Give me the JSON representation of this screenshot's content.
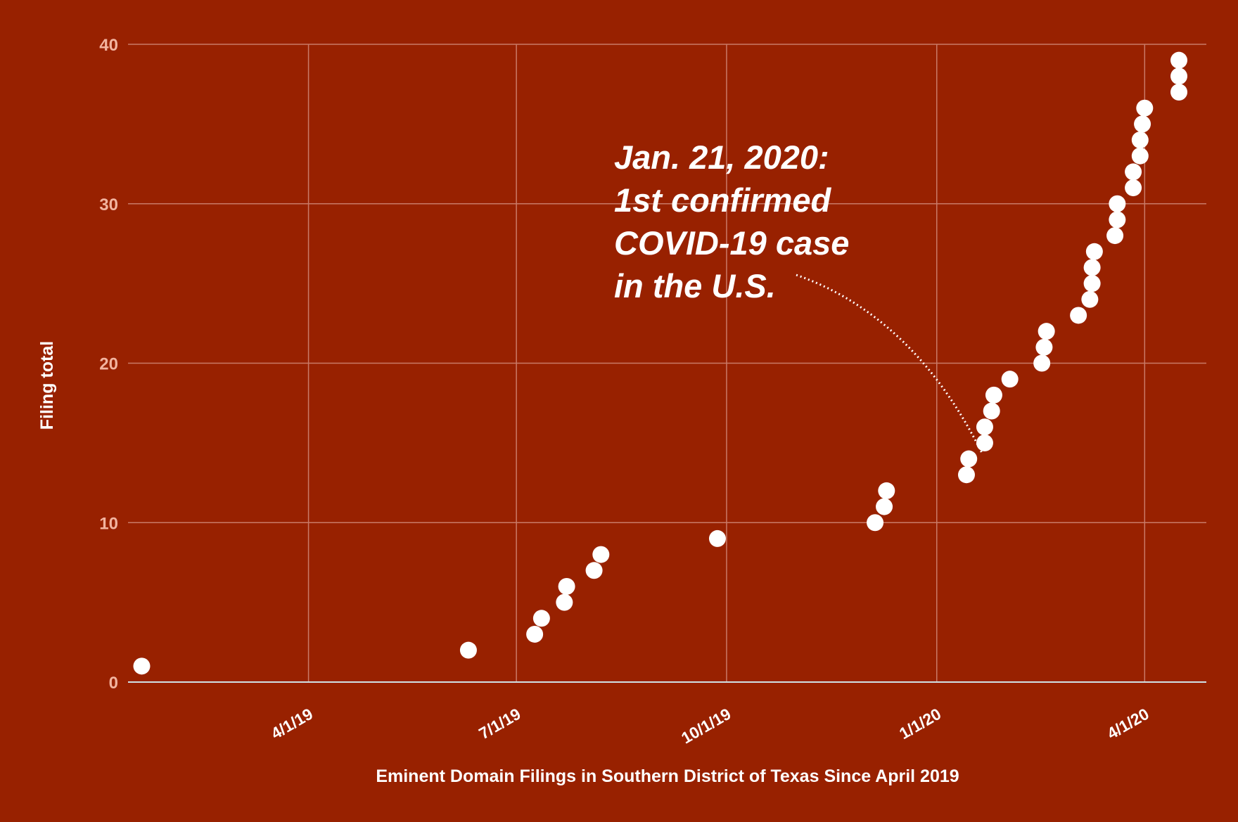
{
  "chart_data": {
    "type": "scatter",
    "xlabel": "Eminent Domain Filings in Southern District of Texas Since April 2019",
    "ylabel": "Filing total",
    "ylim": [
      0,
      40
    ],
    "yticks": [
      0,
      10,
      20,
      30,
      40
    ],
    "xlim": [
      "2019-01-12",
      "2020-04-28"
    ],
    "xticks": [
      {
        "date": "2019-04-01",
        "label": "4/1/19"
      },
      {
        "date": "2019-07-01",
        "label": "7/1/19"
      },
      {
        "date": "2019-10-01",
        "label": "10/1/19"
      },
      {
        "date": "2020-01-01",
        "label": "1/1/20"
      },
      {
        "date": "2020-04-01",
        "label": "4/1/20"
      }
    ],
    "grid": true,
    "points": [
      {
        "x": "2019-01-18",
        "y": 1
      },
      {
        "x": "2019-06-10",
        "y": 2
      },
      {
        "x": "2019-07-09",
        "y": 3
      },
      {
        "x": "2019-07-12",
        "y": 4
      },
      {
        "x": "2019-07-22",
        "y": 5
      },
      {
        "x": "2019-07-23",
        "y": 6
      },
      {
        "x": "2019-08-04",
        "y": 7
      },
      {
        "x": "2019-08-07",
        "y": 8
      },
      {
        "x": "2019-09-27",
        "y": 9
      },
      {
        "x": "2019-12-05",
        "y": 10
      },
      {
        "x": "2019-12-09",
        "y": 11
      },
      {
        "x": "2019-12-10",
        "y": 12
      },
      {
        "x": "2020-01-14",
        "y": 13
      },
      {
        "x": "2020-01-15",
        "y": 14
      },
      {
        "x": "2020-01-22",
        "y": 15
      },
      {
        "x": "2020-01-22",
        "y": 16
      },
      {
        "x": "2020-01-25",
        "y": 17
      },
      {
        "x": "2020-01-26",
        "y": 18
      },
      {
        "x": "2020-02-02",
        "y": 19
      },
      {
        "x": "2020-02-16",
        "y": 20
      },
      {
        "x": "2020-02-17",
        "y": 21
      },
      {
        "x": "2020-02-18",
        "y": 22
      },
      {
        "x": "2020-03-03",
        "y": 23
      },
      {
        "x": "2020-03-08",
        "y": 24
      },
      {
        "x": "2020-03-09",
        "y": 25
      },
      {
        "x": "2020-03-09",
        "y": 26
      },
      {
        "x": "2020-03-10",
        "y": 27
      },
      {
        "x": "2020-03-19",
        "y": 28
      },
      {
        "x": "2020-03-20",
        "y": 29
      },
      {
        "x": "2020-03-20",
        "y": 30
      },
      {
        "x": "2020-03-27",
        "y": 31
      },
      {
        "x": "2020-03-27",
        "y": 32
      },
      {
        "x": "2020-03-30",
        "y": 33
      },
      {
        "x": "2020-03-30",
        "y": 34
      },
      {
        "x": "2020-03-31",
        "y": 35
      },
      {
        "x": "2020-04-01",
        "y": 36
      },
      {
        "x": "2020-04-16",
        "y": 37
      },
      {
        "x": "2020-04-16",
        "y": 38
      },
      {
        "x": "2020-04-16",
        "y": 39
      }
    ],
    "annotations": [
      {
        "lines": [
          "Jan. 21, 2020:",
          "1st confirmed",
          "COVID-19 case",
          "in the U.S."
        ],
        "target": {
          "x": "2020-01-21",
          "y": 14.3
        }
      }
    ]
  }
}
